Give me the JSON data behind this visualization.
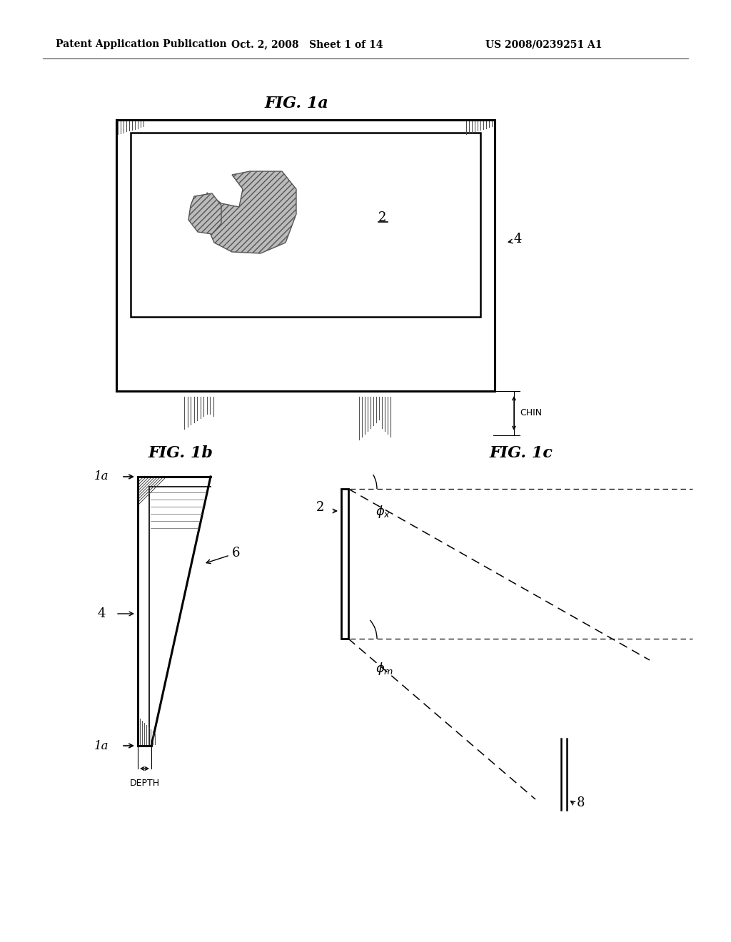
{
  "header_left": "Patent Application Publication",
  "header_mid": "Oct. 2, 2008   Sheet 1 of 14",
  "header_right": "US 2008/0239251 A1",
  "fig1a_title": "FIG. 1a",
  "fig1b_title": "FIG. 1b",
  "fig1c_title": "FIG. 1c",
  "label_2": "2",
  "label_4": "4",
  "label_6": "6",
  "label_4b": "4",
  "label_1a_top": "1a",
  "label_1a_bot": "1a",
  "label_8": "8",
  "label_chin": "CHIN",
  "label_depth": "DEPTH",
  "label_phi_x": "φx",
  "label_phi_m": "φm",
  "bg_color": "#ffffff",
  "line_color": "#000000"
}
